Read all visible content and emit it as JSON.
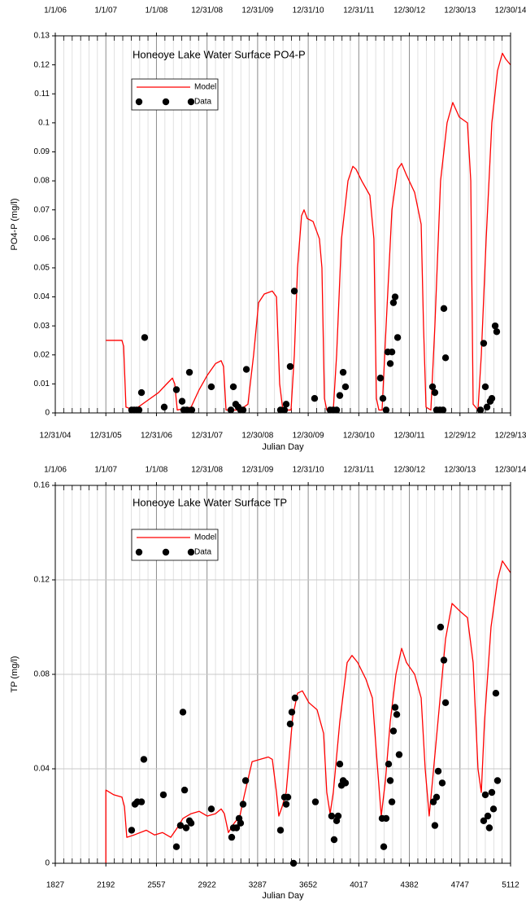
{
  "chart_data": [
    {
      "type": "line",
      "title": "Honeoye Lake Water Surface PO4-P",
      "xlabel": "Julian Day",
      "ylabel": "PO4-P (mg/l)",
      "xlim": [
        1827,
        5112
      ],
      "ylim": [
        0,
        0.13
      ],
      "xticks": [
        {
          "value": 1827,
          "label": "12/31/04"
        },
        {
          "value": 2192,
          "label": "12/31/05"
        },
        {
          "value": 2557,
          "label": "12/31/06"
        },
        {
          "value": 2922,
          "label": "12/31/07"
        },
        {
          "value": 3287,
          "label": "12/30/08"
        },
        {
          "value": 3652,
          "label": "12/30/09"
        },
        {
          "value": 4017,
          "label": "12/30/10"
        },
        {
          "value": 4382,
          "label": "12/30/11"
        },
        {
          "value": 4747,
          "label": "12/29/12"
        },
        {
          "value": 5112,
          "label": "12/29/13"
        }
      ],
      "x2ticks": [
        {
          "value": 1827,
          "label": "1/1/06"
        },
        {
          "value": 2192,
          "label": "1/1/07"
        },
        {
          "value": 2557,
          "label": "1/1/08"
        },
        {
          "value": 2922,
          "label": "12/31/08"
        },
        {
          "value": 3287,
          "label": "12/31/09"
        },
        {
          "value": 3652,
          "label": "12/31/10"
        },
        {
          "value": 4017,
          "label": "12/31/11"
        },
        {
          "value": 4382,
          "label": "12/30/12"
        },
        {
          "value": 4747,
          "label": "12/30/13"
        },
        {
          "value": 5112,
          "label": "12/30/14"
        }
      ],
      "minor_xticks": [
        1888,
        1949,
        2010,
        2071,
        2131,
        2253,
        2314,
        2375,
        2436,
        2496,
        2618,
        2679,
        2740,
        2801,
        2861,
        2983,
        3044,
        3105,
        3166,
        3226,
        3348,
        3409,
        3470,
        3531,
        3591,
        3713,
        3774,
        3835,
        3896,
        3956,
        4078,
        4139,
        4200,
        4261,
        4321,
        4443,
        4504,
        4565,
        4626,
        4686,
        4808,
        4869,
        4930,
        4991,
        5051
      ],
      "yticks": [
        0,
        0.01,
        0.02,
        0.03,
        0.04,
        0.05,
        0.06,
        0.07,
        0.08,
        0.09,
        0.1,
        0.11,
        0.12,
        0.13
      ],
      "grid_x": true,
      "grid_y": false,
      "legend": "upper-left",
      "series": [
        {
          "name": "Model",
          "color": "#ff0000",
          "x": [
            2192,
            2308,
            2320,
            2337,
            2396,
            2484,
            2572,
            2631,
            2672,
            2689,
            2707,
            2807,
            2865,
            2924,
            2983,
            3024,
            3041,
            3059,
            3159,
            3217,
            3258,
            3294,
            3335,
            3393,
            3423,
            3446,
            3469,
            3528,
            3552,
            3575,
            3604,
            3622,
            3645,
            3687,
            3733,
            3751,
            3769,
            3786,
            3833,
            3857,
            3892,
            3939,
            3974,
            3997,
            4038,
            4097,
            4126,
            4144,
            4162,
            4185,
            4214,
            4256,
            4297,
            4326,
            4361,
            4420,
            4467,
            4484,
            4502,
            4537,
            4566,
            4607,
            4654,
            4695,
            4742,
            4801,
            4825,
            4842,
            4877,
            4901,
            4936,
            4977,
            5018,
            5053,
            5077,
            5112
          ],
          "values": [
            0.025,
            0.025,
            0.023,
            0.002,
            0.001,
            0.004,
            0.007,
            0.01,
            0.012,
            0.01,
            0.001,
            0.002,
            0.008,
            0.013,
            0.017,
            0.018,
            0.016,
            0.001,
            0.001,
            0.003,
            0.02,
            0.038,
            0.041,
            0.042,
            0.04,
            0.01,
            0.001,
            0.001,
            0.02,
            0.05,
            0.068,
            0.07,
            0.067,
            0.066,
            0.06,
            0.05,
            0.005,
            0.001,
            0.001,
            0.02,
            0.06,
            0.08,
            0.085,
            0.084,
            0.08,
            0.075,
            0.06,
            0.005,
            0.001,
            0.001,
            0.03,
            0.07,
            0.084,
            0.086,
            0.082,
            0.076,
            0.065,
            0.03,
            0.002,
            0.001,
            0.03,
            0.08,
            0.1,
            0.107,
            0.102,
            0.1,
            0.08,
            0.003,
            0.001,
            0.02,
            0.06,
            0.1,
            0.118,
            0.124,
            0.122,
            0.12
          ]
        },
        {
          "name": "Data",
          "color": "#000000",
          "marker": "circle",
          "x": [
            2378,
            2396,
            2414,
            2431,
            2449,
            2472,
            2613,
            2701,
            2742,
            2754,
            2777,
            2795,
            2812,
            2953,
            3094,
            3112,
            3129,
            3147,
            3164,
            3182,
            3206,
            3452,
            3481,
            3493,
            3522,
            3552,
            3698,
            3810,
            3833,
            3857,
            3880,
            3904,
            3921,
            4173,
            4191,
            4214,
            4226,
            4244,
            4256,
            4267,
            4279,
            4297,
            4549,
            4566,
            4578,
            4602,
            4625,
            4631,
            4643,
            4895,
            4918,
            4930,
            4942,
            4965,
            4977,
            5001,
            5012
          ],
          "values": [
            0.001,
            0.001,
            0.001,
            0.001,
            0.007,
            0.026,
            0.002,
            0.008,
            0.004,
            0.001,
            0.001,
            0.014,
            0.001,
            0.009,
            0.001,
            0.009,
            0.003,
            0.002,
            0.001,
            0.001,
            0.015,
            0.001,
            0.001,
            0.003,
            0.016,
            0.042,
            0.005,
            0.001,
            0.001,
            0.001,
            0.006,
            0.014,
            0.009,
            0.012,
            0.005,
            0.001,
            0.021,
            0.017,
            0.021,
            0.038,
            0.04,
            0.026,
            0.009,
            0.007,
            0.001,
            0.001,
            0.001,
            0.036,
            0.019,
            0.001,
            0.024,
            0.009,
            0.002,
            0.004,
            0.005,
            0.03,
            0.028
          ]
        }
      ]
    },
    {
      "type": "line",
      "title": "Honeoye Lake Water Surface TP",
      "xlabel": "Julian Day",
      "ylabel": "TP (mg/l)",
      "xlim": [
        1827,
        5112
      ],
      "ylim": [
        0,
        0.16
      ],
      "xticks": [
        1827,
        2192,
        2557,
        2922,
        3287,
        3652,
        4017,
        4382,
        4747,
        5112
      ],
      "x2ticks": [
        {
          "value": 1827,
          "label": "1/1/06"
        },
        {
          "value": 2192,
          "label": "1/1/07"
        },
        {
          "value": 2557,
          "label": "1/1/08"
        },
        {
          "value": 2922,
          "label": "12/31/08"
        },
        {
          "value": 3287,
          "label": "12/31/09"
        },
        {
          "value": 3652,
          "label": "12/31/10"
        },
        {
          "value": 4017,
          "label": "12/31/11"
        },
        {
          "value": 4382,
          "label": "12/30/12"
        },
        {
          "value": 4747,
          "label": "12/30/13"
        },
        {
          "value": 5112,
          "label": "12/30/14"
        }
      ],
      "minor_xticks": [
        1888,
        1949,
        2010,
        2071,
        2131,
        2253,
        2314,
        2375,
        2436,
        2496,
        2618,
        2679,
        2740,
        2801,
        2861,
        2983,
        3044,
        3105,
        3166,
        3226,
        3348,
        3409,
        3470,
        3531,
        3591,
        3713,
        3774,
        3835,
        3896,
        3956,
        4078,
        4139,
        4200,
        4261,
        4321,
        4443,
        4504,
        4565,
        4626,
        4686,
        4808,
        4869,
        4930,
        4991,
        5051
      ],
      "yticks": [
        0,
        0.04,
        0.08,
        0.12,
        0.16
      ],
      "grid_x": true,
      "grid_y": true,
      "legend": "upper-left",
      "series": [
        {
          "name": "Model",
          "color": "#ff0000",
          "x": [
            2192,
            2192,
            2249,
            2308,
            2326,
            2343,
            2396,
            2484,
            2543,
            2601,
            2660,
            2707,
            2748,
            2807,
            2865,
            2924,
            2983,
            3024,
            3047,
            3076,
            3118,
            3159,
            3188,
            3247,
            3305,
            3364,
            3393,
            3423,
            3440,
            3464,
            3493,
            3540,
            3575,
            3610,
            3657,
            3716,
            3763,
            3786,
            3810,
            3833,
            3880,
            3933,
            3968,
            4009,
            4068,
            4115,
            4150,
            4179,
            4209,
            4244,
            4285,
            4326,
            4361,
            4420,
            4467,
            4496,
            4525,
            4549,
            4596,
            4643,
            4690,
            4742,
            4801,
            4842,
            4877,
            4901,
            4924,
            4971,
            5018,
            5053,
            5077,
            5112
          ],
          "values": [
            0,
            0.031,
            0.029,
            0.028,
            0.024,
            0.011,
            0.012,
            0.014,
            0.012,
            0.013,
            0.011,
            0.015,
            0.019,
            0.021,
            0.022,
            0.02,
            0.021,
            0.023,
            0.021,
            0.013,
            0.017,
            0.02,
            0.028,
            0.043,
            0.044,
            0.045,
            0.044,
            0.03,
            0.02,
            0.024,
            0.03,
            0.062,
            0.072,
            0.073,
            0.068,
            0.065,
            0.055,
            0.03,
            0.021,
            0.03,
            0.06,
            0.085,
            0.088,
            0.085,
            0.078,
            0.07,
            0.042,
            0.02,
            0.035,
            0.06,
            0.08,
            0.091,
            0.085,
            0.08,
            0.07,
            0.04,
            0.02,
            0.035,
            0.065,
            0.095,
            0.11,
            0.107,
            0.104,
            0.085,
            0.04,
            0.03,
            0.06,
            0.1,
            0.12,
            0.128,
            0.126,
            0.123
          ]
        },
        {
          "name": "Data",
          "color": "#000000",
          "marker": "circle",
          "x": [
            2378,
            2402,
            2419,
            2449,
            2466,
            2607,
            2701,
            2730,
            2748,
            2760,
            2771,
            2795,
            2807,
            2953,
            3100,
            3112,
            3135,
            3153,
            3164,
            3182,
            3200,
            3452,
            3481,
            3493,
            3505,
            3522,
            3534,
            3546,
            3557,
            3704,
            3821,
            3839,
            3857,
            3868,
            3880,
            3892,
            3904,
            3921,
            4185,
            4197,
            4214,
            4232,
            4244,
            4256,
            4267,
            4279,
            4291,
            4308,
            4555,
            4566,
            4578,
            4590,
            4607,
            4619,
            4631,
            4643,
            4918,
            4930,
            4948,
            4959,
            4977,
            4989,
            5006,
            5018
          ],
          "values": [
            0.014,
            0.025,
            0.026,
            0.026,
            0.044,
            0.029,
            0.007,
            0.016,
            0.064,
            0.031,
            0.015,
            0.018,
            0.017,
            0.023,
            0.011,
            0.015,
            0.015,
            0.019,
            0.017,
            0.025,
            0.035,
            0.014,
            0.028,
            0.025,
            0.028,
            0.059,
            0.064,
            0,
            0.07,
            0.026,
            0.02,
            0.01,
            0.018,
            0.02,
            0.042,
            0.033,
            0.035,
            0.034,
            0.019,
            0.007,
            0.019,
            0.042,
            0.035,
            0.026,
            0.056,
            0.066,
            0.063,
            0.046,
            0.026,
            0.016,
            0.028,
            0.039,
            0.1,
            0.034,
            0.086,
            0.068,
            0.018,
            0.029,
            0.02,
            0.015,
            0.03,
            0.023,
            0.072,
            0.035
          ]
        }
      ]
    }
  ]
}
